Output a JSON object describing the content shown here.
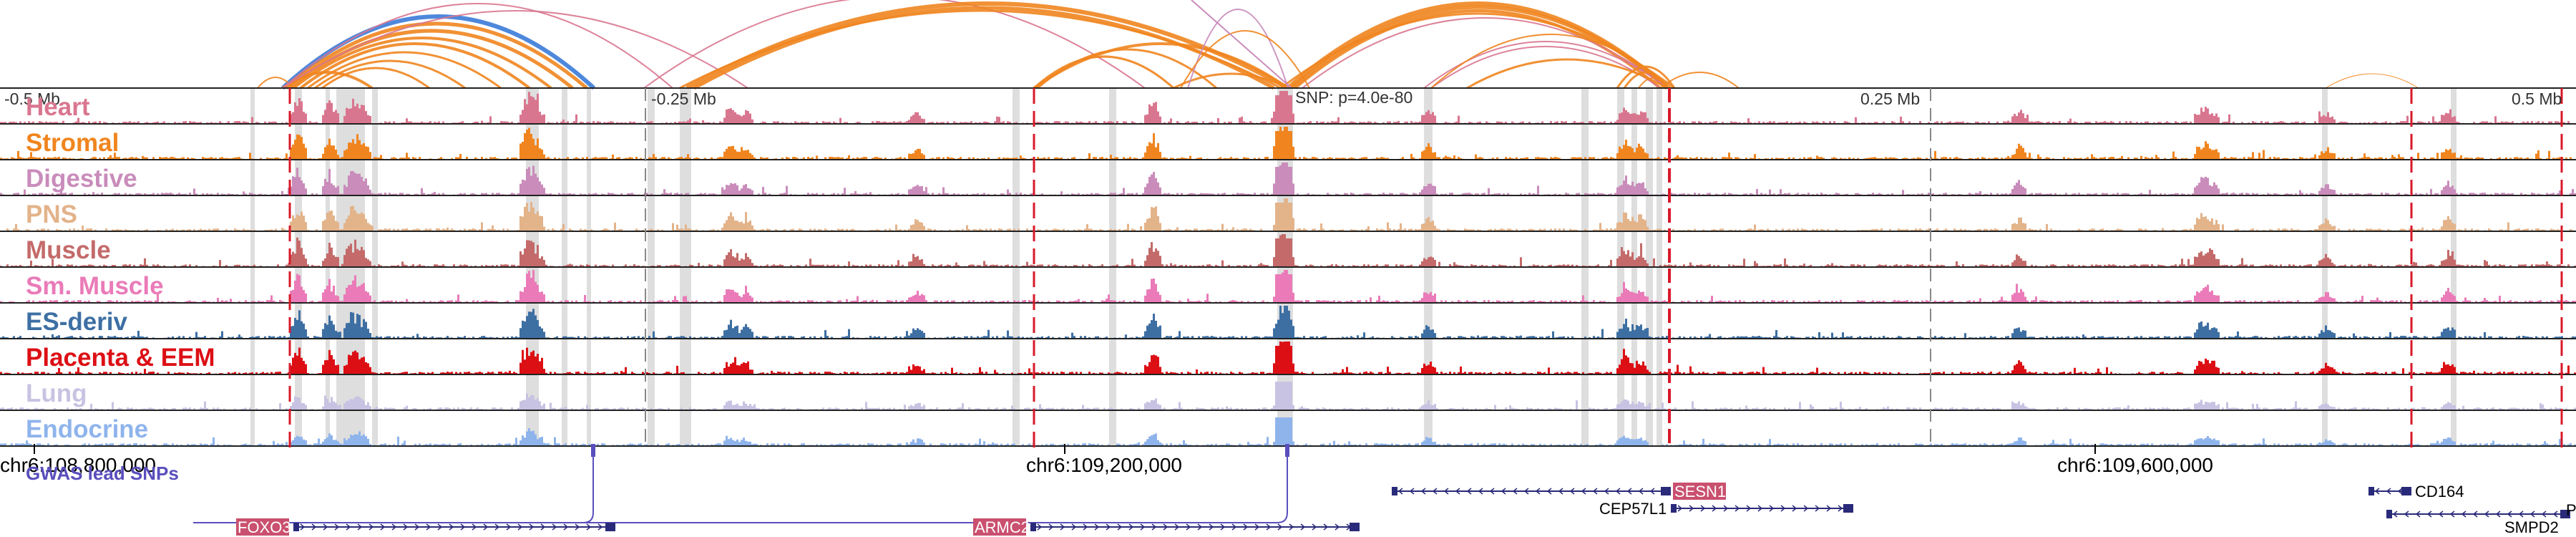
{
  "colors": {
    "heart": "#d9768f",
    "stromal": "#f0851f",
    "digestive": "#c98cbb",
    "pns": "#e3b38a",
    "muscle": "#c46a6a",
    "sm_muscle": "#ea7bb8",
    "es_deriv": "#3d6fa3",
    "placenta": "#dc0f15",
    "lung": "#c8c3e2",
    "endocrine": "#8fb4ec",
    "gwas": "#5a4fbd",
    "gene": "#2a2a7a",
    "gene_highlight": "#c9506e",
    "highlight_line": "#d8192a"
  },
  "tracks": [
    {
      "key": "heart",
      "label": "Heart"
    },
    {
      "key": "stromal",
      "label": "Stromal"
    },
    {
      "key": "digestive",
      "label": "Digestive"
    },
    {
      "key": "pns",
      "label": "PNS"
    },
    {
      "key": "muscle",
      "label": "Muscle"
    },
    {
      "key": "sm_muscle",
      "label": "Sm. Muscle"
    },
    {
      "key": "es_deriv",
      "label": "ES-deriv"
    },
    {
      "key": "placenta",
      "label": "Placenta & EEM"
    },
    {
      "key": "lung",
      "label": "Lung"
    },
    {
      "key": "endocrine",
      "label": "Endocrine"
    }
  ],
  "offset_labels": {
    "minus_05": "-0.5 Mb",
    "minus_025": "-0.25 Mb",
    "snp": "SNP: p=4.0e-80",
    "plus_025": "0.25 Mb",
    "plus_05": "0.5 Mb"
  },
  "coordinates": [
    "chr6:108,800,000",
    "chr6:109,200,000",
    "chr6:109,600,000"
  ],
  "gwas_label": "GWAS lead SNPs",
  "genes": {
    "foxo3": "FOXO3",
    "armc2": "ARMC2",
    "sesn1": "SESN1",
    "cep57l1": "CEP57L1",
    "cd164": "CD164",
    "smpd2": "SMPD2",
    "p_trunc": "P"
  }
}
